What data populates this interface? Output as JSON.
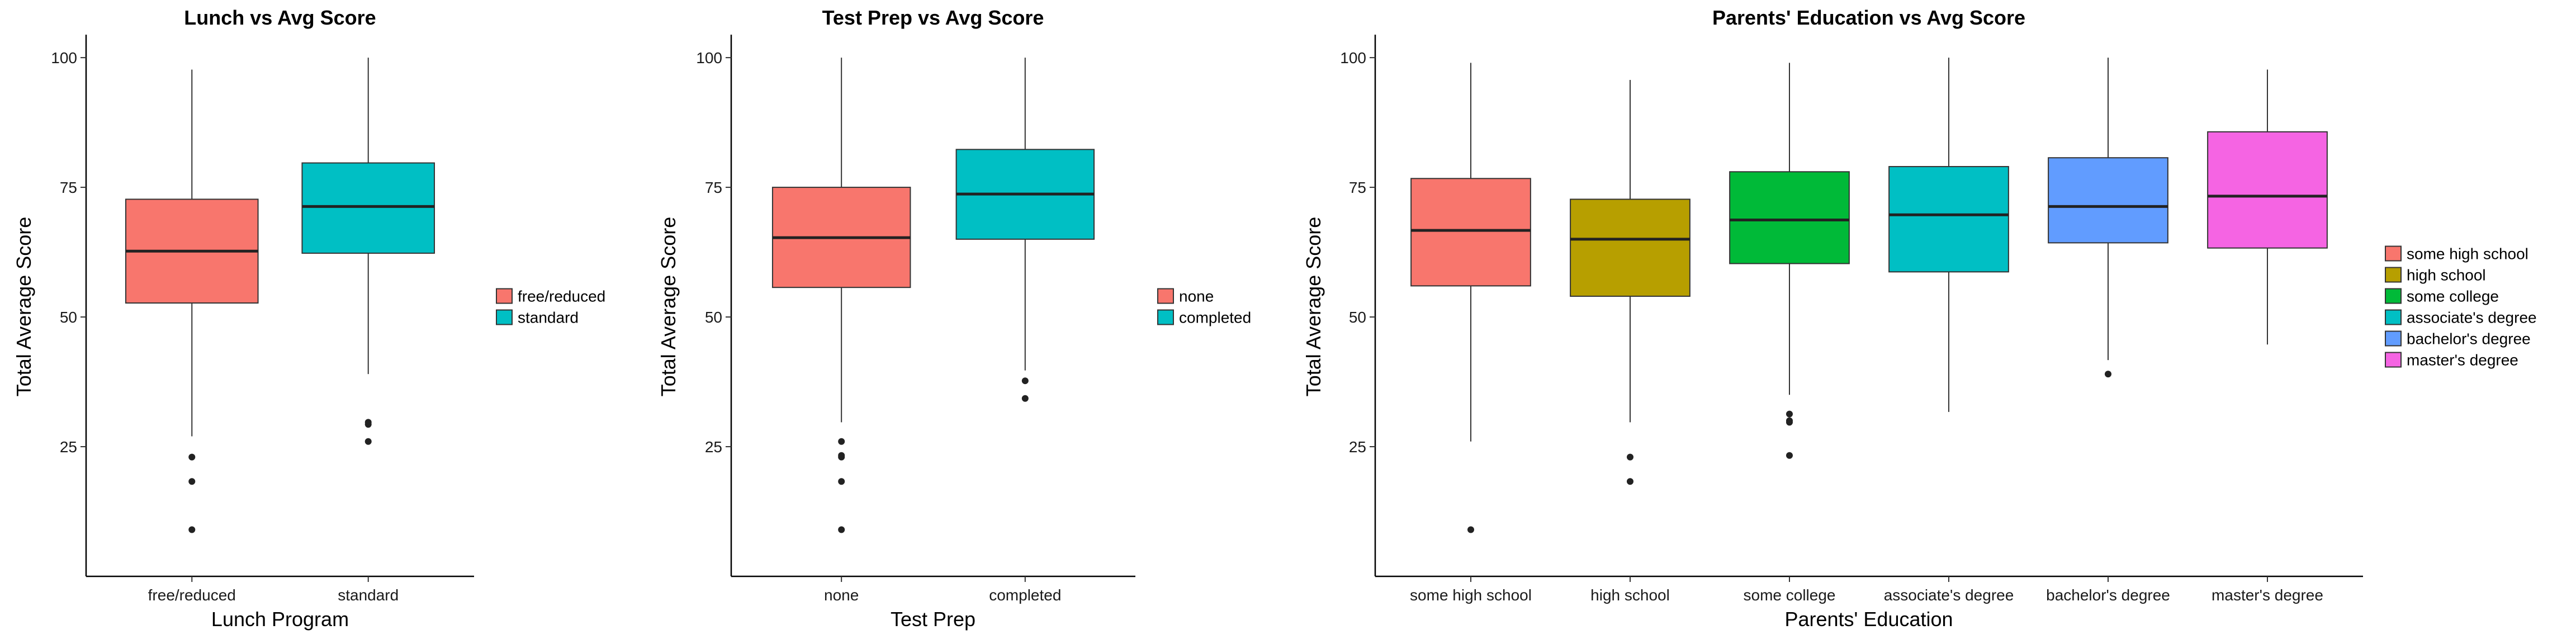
{
  "chart_data": [
    {
      "type": "box",
      "title": "Lunch vs Avg Score",
      "xlabel": "Lunch Program",
      "ylabel": "Total Average Score",
      "ylim": [
        0,
        104
      ],
      "yticks": [
        25,
        50,
        75,
        100
      ],
      "grid": false,
      "legend": {
        "placement": "right",
        "entries": [
          {
            "label": "free/reduced",
            "color": "#F8766D"
          },
          {
            "label": "standard",
            "color": "#00BFC4"
          }
        ]
      },
      "categories": [
        "free/reduced",
        "standard"
      ],
      "boxes": [
        {
          "category": "free/reduced",
          "color": "#F8766D",
          "min": 27,
          "q1": 52.7,
          "median": 62.7,
          "q3": 72.7,
          "max": 97.7,
          "outliers": [
            23,
            18.3,
            9
          ]
        },
        {
          "category": "standard",
          "color": "#00BFC4",
          "min": 39,
          "q1": 62.3,
          "median": 71.3,
          "q3": 79.7,
          "max": 100,
          "outliers": [
            29.7,
            29.3,
            26
          ]
        }
      ]
    },
    {
      "type": "box",
      "title": "Test Prep vs Avg Score",
      "xlabel": "Test Prep",
      "ylabel": "Total Average Score",
      "ylim": [
        0,
        104
      ],
      "yticks": [
        25,
        50,
        75,
        100
      ],
      "grid": false,
      "legend": {
        "placement": "right",
        "entries": [
          {
            "label": "none",
            "color": "#F8766D"
          },
          {
            "label": "completed",
            "color": "#00BFC4"
          }
        ]
      },
      "categories": [
        "none",
        "completed"
      ],
      "boxes": [
        {
          "category": "none",
          "color": "#F8766D",
          "min": 29.7,
          "q1": 55.7,
          "median": 65.3,
          "q3": 75,
          "max": 100,
          "outliers": [
            26,
            23.3,
            23,
            18.3,
            9
          ]
        },
        {
          "category": "completed",
          "color": "#00BFC4",
          "min": 39.7,
          "q1": 65,
          "median": 73.7,
          "q3": 82.3,
          "max": 100,
          "outliers": [
            37.7,
            34.3
          ]
        }
      ]
    },
    {
      "type": "box",
      "title": "Parents' Education vs Avg Score",
      "xlabel": "Parents' Education",
      "ylabel": "Total Average Score",
      "ylim": [
        0,
        104
      ],
      "yticks": [
        25,
        50,
        75,
        100
      ],
      "grid": false,
      "legend": {
        "placement": "right",
        "entries": [
          {
            "label": "some high school",
            "color": "#F8766D"
          },
          {
            "label": "high school",
            "color": "#B79F00"
          },
          {
            "label": "some college",
            "color": "#00BA38"
          },
          {
            "label": "associate's degree",
            "color": "#00BFC4"
          },
          {
            "label": "bachelor's degree",
            "color": "#619CFF"
          },
          {
            "label": "master's degree",
            "color": "#F564E3"
          }
        ]
      },
      "categories": [
        "some high school",
        "high school",
        "some college",
        "associate's degree",
        "bachelor's degree",
        "master's degree"
      ],
      "boxes": [
        {
          "category": "some high school",
          "color": "#F8766D",
          "min": 26,
          "q1": 56,
          "median": 66.7,
          "q3": 76.7,
          "max": 99,
          "outliers": [
            9
          ]
        },
        {
          "category": "high school",
          "color": "#B79F00",
          "min": 29.7,
          "q1": 54,
          "median": 65,
          "q3": 72.7,
          "max": 95.7,
          "outliers": [
            23,
            18.3
          ]
        },
        {
          "category": "some college",
          "color": "#00BA38",
          "min": 35,
          "q1": 60.3,
          "median": 68.7,
          "q3": 78,
          "max": 99,
          "outliers": [
            31.3,
            30,
            29.7,
            23.3
          ]
        },
        {
          "category": "associate's degree",
          "color": "#00BFC4",
          "min": 31.7,
          "q1": 58.7,
          "median": 69.7,
          "q3": 79,
          "max": 100,
          "outliers": []
        },
        {
          "category": "bachelor's degree",
          "color": "#619CFF",
          "min": 41.7,
          "q1": 64.3,
          "median": 71.3,
          "q3": 80.7,
          "max": 100,
          "outliers": [
            39
          ]
        },
        {
          "category": "master's degree",
          "color": "#F564E3",
          "min": 44.7,
          "q1": 63.3,
          "median": 73.3,
          "q3": 85.7,
          "max": 97.7,
          "outliers": []
        }
      ]
    }
  ]
}
